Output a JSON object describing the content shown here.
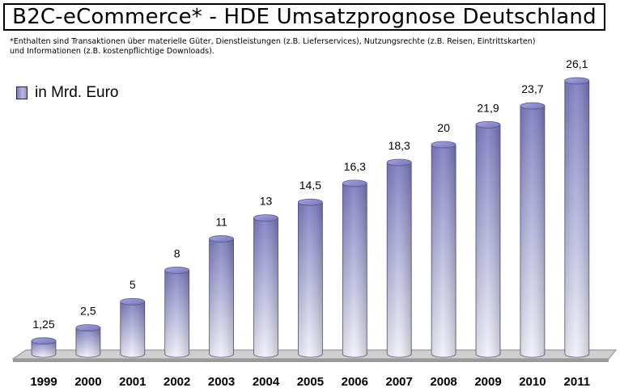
{
  "title": "B2C-eCommerce* - HDE Umsatzprognose Deutschland",
  "footnote": {
    "line1": "*Enthalten sind Transaktionen über materielle Güter, Dienstleistungen (z.B. Lieferservices), Nutzungsrechte (z.B. Reisen, Eintrittskarten)",
    "line2": "und Informationen (z.B. kostenpflichtige Downloads)."
  },
  "legend": {
    "label": "in Mrd. Euro"
  },
  "colors": {
    "bar_dark": "#7a7ac0",
    "bar_light": "#f2f2fa",
    "floor": "#c8c8c8"
  },
  "chart_data": {
    "type": "bar",
    "style": "3d-cylinder",
    "title": "B2C-eCommerce* - HDE Umsatzprognose Deutschland",
    "categories": [
      "1999",
      "2000",
      "2001",
      "2002",
      "2003",
      "2004",
      "2005",
      "2006",
      "2007",
      "2008",
      "2009",
      "2010",
      "2011"
    ],
    "series": [
      {
        "name": "in Mrd. Euro",
        "values": [
          1.25,
          2.5,
          5,
          8,
          11,
          13,
          14.5,
          16.3,
          18.3,
          20,
          21.9,
          23.7,
          26.1
        ],
        "labels": [
          "1,25",
          "2,5",
          "5",
          "8",
          "11",
          "13",
          "14,5",
          "16,3",
          "18,3",
          "20",
          "21,9",
          "23,7",
          "26,1"
        ]
      }
    ],
    "ylim": [
      0,
      26.1
    ],
    "grid": false,
    "legend_position": "top-left"
  }
}
